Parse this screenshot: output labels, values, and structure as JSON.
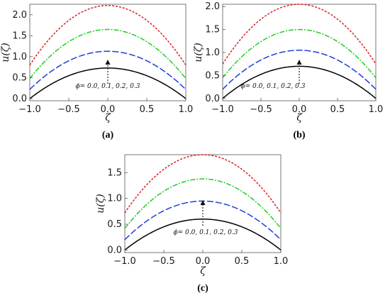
{
  "chart_data": [
    {
      "type": "line",
      "panel_label": "(a)",
      "xlabel": "ζ",
      "ylabel": "u(ζ)",
      "xlim": [
        -1.0,
        1.0
      ],
      "ylim": [
        -0.05,
        2.25
      ],
      "xticks": [
        "-1.0",
        "-0.5",
        "0.0",
        "0.5",
        "1.0"
      ],
      "yticks": [
        "0.0",
        "0.5",
        "1.0",
        "1.5",
        "2.0"
      ],
      "annotation": "ϕ= 0.0, 0.1, 0.2, 0.3",
      "series": [
        {
          "peak": 0.73,
          "end": 0.0,
          "color": "#000000",
          "dash": "solid"
        },
        {
          "peak": 1.13,
          "end": 0.22,
          "color": "#1f3fd6",
          "dash": "long-dash"
        },
        {
          "peak": 1.65,
          "end": 0.48,
          "color": "#22cc22",
          "dash": "dash-dot"
        },
        {
          "peak": 2.22,
          "end": 0.8,
          "color": "#e02020",
          "dash": "short-dash"
        }
      ]
    },
    {
      "type": "line",
      "panel_label": "(b)",
      "xlabel": "ζ",
      "ylabel": "u(ζ)",
      "xlim": [
        -1.0,
        1.0
      ],
      "ylim": [
        -0.05,
        2.05
      ],
      "xticks": [
        "-1.0",
        "-0.5",
        "0.0",
        "0.5",
        "1.0"
      ],
      "yticks": [
        "0.0",
        "0.5",
        "1.0",
        "1.5",
        "2.0"
      ],
      "annotation": "ϕ= 0.0, 0.1, 0.2, 0.3",
      "series": [
        {
          "peak": 0.7,
          "end": 0.0,
          "color": "#000000",
          "dash": "solid"
        },
        {
          "peak": 1.05,
          "end": 0.2,
          "color": "#1f3fd6",
          "dash": "long-dash"
        },
        {
          "peak": 1.5,
          "end": 0.45,
          "color": "#22cc22",
          "dash": "dash-dot"
        },
        {
          "peak": 2.05,
          "end": 0.75,
          "color": "#e02020",
          "dash": "short-dash"
        }
      ]
    },
    {
      "type": "line",
      "panel_label": "(c)",
      "xlabel": "ζ",
      "ylabel": "u(ζ)",
      "xlim": [
        -1.0,
        1.0
      ],
      "ylim": [
        -0.05,
        1.85
      ],
      "xticks": [
        "-1.0",
        "-0.5",
        "0.0",
        "0.5",
        "1.0"
      ],
      "yticks": [
        "0.0",
        "0.5",
        "1.0",
        "1.5"
      ],
      "annotation": "ϕ= 0.0, 0.1, 0.2, 0.3",
      "series": [
        {
          "peak": 0.6,
          "end": 0.0,
          "color": "#000000",
          "dash": "solid"
        },
        {
          "peak": 0.95,
          "end": 0.2,
          "color": "#1f3fd6",
          "dash": "long-dash"
        },
        {
          "peak": 1.38,
          "end": 0.42,
          "color": "#22cc22",
          "dash": "dash-dot"
        },
        {
          "peak": 1.85,
          "end": 0.72,
          "color": "#e02020",
          "dash": "short-dash"
        }
      ]
    }
  ]
}
